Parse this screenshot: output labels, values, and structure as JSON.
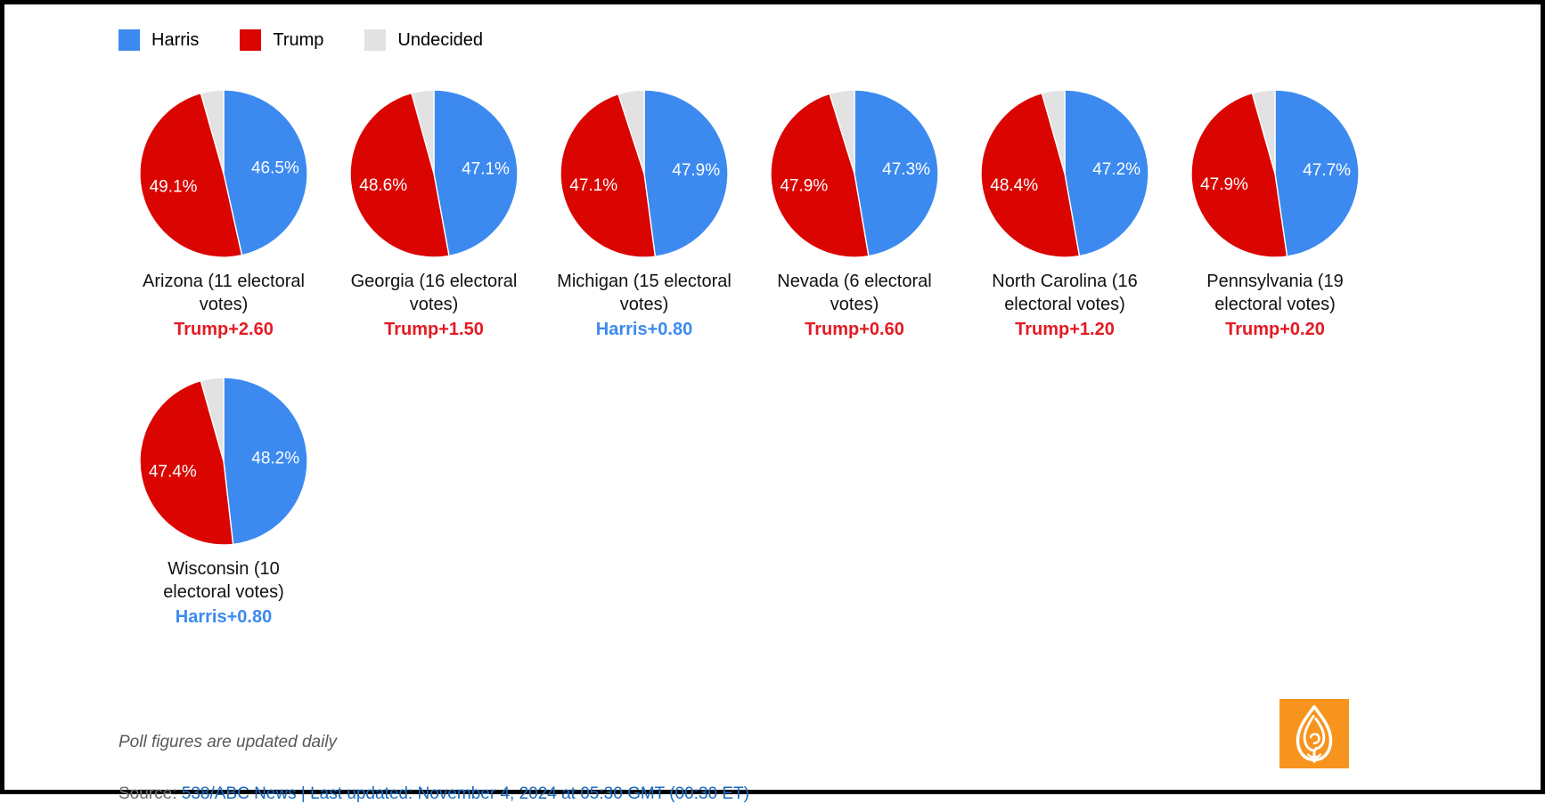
{
  "colors": {
    "harris": "#3C8AF0",
    "trump": "#DA0500",
    "undecided": "#E2E2E2",
    "margin_trump": "#E31B23",
    "margin_harris": "#3C8AF0",
    "source_link": "#1B6DC1",
    "logo_orange": "#F7941E"
  },
  "legend": {
    "items": [
      {
        "label": "Harris",
        "color": "#3C8AF0"
      },
      {
        "label": "Trump",
        "color": "#DA0500"
      },
      {
        "label": "Undecided",
        "color": "#E2E2E2"
      }
    ]
  },
  "chart_data": [
    {
      "type": "pie",
      "title": "Arizona (11 electoral votes)",
      "categories": [
        "Harris",
        "Trump",
        "Undecided"
      ],
      "values": [
        46.5,
        49.1,
        4.4
      ],
      "margin": "Trump+2.60",
      "leader": "Trump"
    },
    {
      "type": "pie",
      "title": "Georgia (16 electoral votes)",
      "categories": [
        "Harris",
        "Trump",
        "Undecided"
      ],
      "values": [
        47.1,
        48.6,
        4.3
      ],
      "margin": "Trump+1.50",
      "leader": "Trump"
    },
    {
      "type": "pie",
      "title": "Michigan (15 electoral votes)",
      "categories": [
        "Harris",
        "Trump",
        "Undecided"
      ],
      "values": [
        47.9,
        47.1,
        5.0
      ],
      "margin": "Harris+0.80",
      "leader": "Harris"
    },
    {
      "type": "pie",
      "title": "Nevada (6 electoral votes)",
      "categories": [
        "Harris",
        "Trump",
        "Undecided"
      ],
      "values": [
        47.3,
        47.9,
        4.8
      ],
      "margin": "Trump+0.60",
      "leader": "Trump"
    },
    {
      "type": "pie",
      "title": "North Carolina (16 electoral votes)",
      "categories": [
        "Harris",
        "Trump",
        "Undecided"
      ],
      "values": [
        47.2,
        48.4,
        4.4
      ],
      "margin": "Trump+1.20",
      "leader": "Trump"
    },
    {
      "type": "pie",
      "title": "Pennsylvania (19 electoral votes)",
      "categories": [
        "Harris",
        "Trump",
        "Undecided"
      ],
      "values": [
        47.7,
        47.9,
        4.4
      ],
      "margin": "Trump+0.20",
      "leader": "Trump"
    },
    {
      "type": "pie",
      "title": "Wisconsin (10 electoral votes)",
      "categories": [
        "Harris",
        "Trump",
        "Undecided"
      ],
      "values": [
        48.2,
        47.4,
        4.4
      ],
      "margin": "Harris+0.80",
      "leader": "Harris"
    }
  ],
  "footer": {
    "note": "Poll figures are updated daily",
    "source_prefix": "Source: ",
    "source_text": "538/ABC News | Last updated: November 4, 2024 at 05:30 GMT (00:30 ET)"
  },
  "logo": {
    "name": "Al Jazeera"
  }
}
